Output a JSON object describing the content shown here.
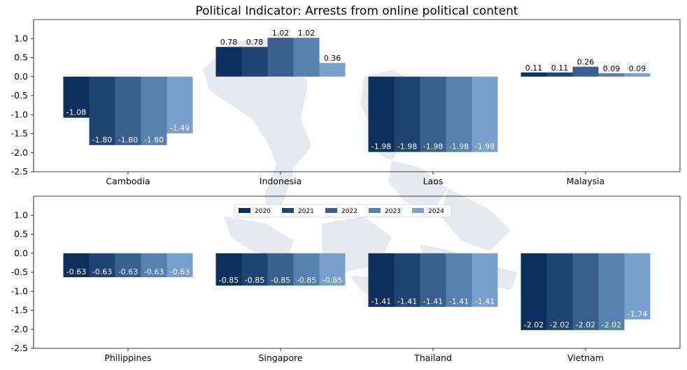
{
  "chart_data": {
    "type": "bar",
    "title": "Political Indicator: Arrests from online political content",
    "categories": [
      "Cambodia",
      "Indonesia",
      "Laos",
      "Malaysia",
      "Philippines",
      "Singapore",
      "Thailand",
      "Vietnam"
    ],
    "series": [
      {
        "name": "2020",
        "color": "#0d2f5c",
        "values": [
          -1.08,
          0.78,
          -1.98,
          0.11,
          -0.63,
          -0.85,
          -1.41,
          -2.02
        ]
      },
      {
        "name": "2021",
        "color": "#1f4471",
        "values": [
          -1.8,
          0.78,
          -1.98,
          0.11,
          -0.63,
          -0.85,
          -1.41,
          -2.02
        ]
      },
      {
        "name": "2022",
        "color": "#385f8d",
        "values": [
          -1.8,
          1.02,
          -1.98,
          0.26,
          -0.63,
          -0.85,
          -1.41,
          -2.02
        ]
      },
      {
        "name": "2023",
        "color": "#5680ad",
        "values": [
          -1.8,
          1.02,
          -1.98,
          0.09,
          -0.63,
          -0.85,
          -1.41,
          -2.02
        ]
      },
      {
        "name": "2024",
        "color": "#79a0cb",
        "values": [
          -1.49,
          0.36,
          -1.98,
          0.09,
          -0.63,
          -0.85,
          -1.41,
          -1.74
        ]
      }
    ],
    "value_labels": {
      "Cambodia": [
        "-1.08",
        "-1.80",
        "-1.80",
        "-1.80",
        "-1.49"
      ],
      "Indonesia": [
        "0.78",
        "0.78",
        "1.02",
        "1.02",
        "0.36"
      ],
      "Laos": [
        "-1.98",
        "-1.98",
        "-1.98",
        "-1.98",
        "-1.98"
      ],
      "Malaysia": [
        "0.11",
        "0.11",
        "0.26",
        "0.09",
        "0.09"
      ],
      "Philippines": [
        "-0.63",
        "-0.63",
        "-0.63",
        "-0.63",
        "-0.63"
      ],
      "Singapore": [
        "-0.85",
        "-0.85",
        "-0.85",
        "-0.85",
        "-0.85"
      ],
      "Thailand": [
        "-1.41",
        "-1.41",
        "-1.41",
        "-1.41",
        "-1.41"
      ],
      "Vietnam": [
        "-2.02",
        "-2.02",
        "-2.02",
        "-2.02",
        "-1.74"
      ]
    },
    "rows": [
      [
        "Cambodia",
        "Indonesia",
        "Laos",
        "Malaysia"
      ],
      [
        "Philippines",
        "Singapore",
        "Thailand",
        "Vietnam"
      ]
    ],
    "ylim": [
      -2.5,
      1.5
    ],
    "yticks": [
      "1.0",
      "0.5",
      "0.0",
      "-0.5",
      "-1.0",
      "-1.5",
      "-2.0",
      "-2.5"
    ],
    "ytick_values": [
      1.0,
      0.5,
      0.0,
      -0.5,
      -1.0,
      -1.5,
      -2.0,
      -2.5
    ],
    "legend_position": "upper-center of bottom row",
    "background": "faded map of Southeast Asia",
    "grid": false
  }
}
